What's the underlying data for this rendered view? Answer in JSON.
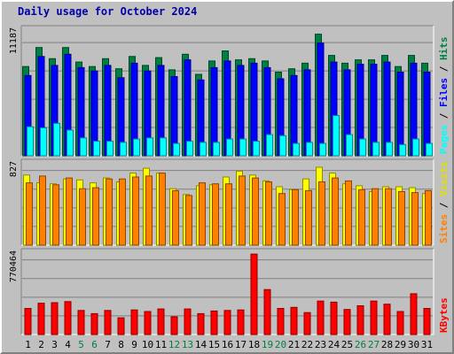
{
  "title": "Daily usage for October 2024",
  "chart_data": [
    {
      "type": "bar",
      "name": "hits-files-pages",
      "max_label": "11187",
      "ylim": [
        0,
        11187
      ],
      "categories": [
        "1",
        "2",
        "3",
        "4",
        "5",
        "6",
        "7",
        "8",
        "9",
        "10",
        "11",
        "12",
        "13",
        "14",
        "15",
        "16",
        "17",
        "18",
        "19",
        "20",
        "21",
        "22",
        "23",
        "24",
        "25",
        "26",
        "27",
        "28",
        "29",
        "30",
        "31"
      ],
      "weekend_days": [
        "5",
        "6",
        "12",
        "13",
        "19",
        "20",
        "26",
        "27"
      ],
      "legend": [
        {
          "label": "Pages",
          "color": "#00ffff"
        },
        {
          "label": "Files",
          "color": "#0000ff"
        },
        {
          "label": "Hits",
          "color": "#008040"
        }
      ],
      "series": [
        {
          "name": "Hits",
          "color": "#008040",
          "values": [
            8000,
            9700,
            8700,
            9700,
            8400,
            8000,
            8700,
            7800,
            8900,
            8100,
            8800,
            7700,
            9100,
            7300,
            8500,
            9400,
            8600,
            8700,
            8500,
            7500,
            7800,
            8300,
            10900,
            9000,
            8300,
            8600,
            8600,
            9000,
            8000,
            9000,
            8300
          ]
        },
        {
          "name": "Files",
          "color": "#0000ff",
          "values": [
            7200,
            8900,
            8100,
            9100,
            7900,
            7600,
            8100,
            7000,
            8300,
            7600,
            8100,
            7100,
            8600,
            6800,
            7900,
            8500,
            8100,
            8300,
            7900,
            6900,
            7200,
            7700,
            10100,
            8400,
            7700,
            8200,
            8200,
            8400,
            7500,
            8300,
            7500
          ]
        },
        {
          "name": "Pages",
          "color": "#00ffff",
          "values": [
            2600,
            2500,
            2900,
            2300,
            1600,
            1300,
            1300,
            1200,
            1500,
            1600,
            1600,
            1100,
            1300,
            1200,
            1200,
            1500,
            1500,
            1300,
            1900,
            1800,
            1100,
            1200,
            1100,
            3600,
            1900,
            1500,
            1200,
            1200,
            1000,
            1500,
            1100
          ]
        }
      ]
    },
    {
      "type": "bar",
      "name": "visits-sites",
      "max_label": "827",
      "ylim": [
        0,
        827
      ],
      "categories": [
        "1",
        "2",
        "3",
        "4",
        "5",
        "6",
        "7",
        "8",
        "9",
        "10",
        "11",
        "12",
        "13",
        "14",
        "15",
        "16",
        "17",
        "18",
        "19",
        "20",
        "21",
        "22",
        "23",
        "24",
        "25",
        "26",
        "27",
        "28",
        "29",
        "30",
        "31"
      ],
      "legend": [
        {
          "label": "Sites",
          "color": "#ff8000"
        },
        {
          "label": "Visits",
          "color": "#ffff00"
        }
      ],
      "series": [
        {
          "name": "Visits",
          "color": "#ffff00",
          "values": [
            720,
            640,
            630,
            680,
            670,
            640,
            690,
            650,
            740,
            790,
            740,
            580,
            520,
            610,
            620,
            700,
            760,
            720,
            660,
            600,
            570,
            680,
            800,
            740,
            630,
            610,
            550,
            600,
            600,
            590,
            530
          ]
        },
        {
          "name": "Sites",
          "color": "#ff8000",
          "values": [
            640,
            710,
            620,
            690,
            580,
            590,
            680,
            680,
            700,
            710,
            740,
            560,
            510,
            640,
            630,
            630,
            710,
            690,
            650,
            530,
            570,
            560,
            650,
            690,
            660,
            570,
            580,
            580,
            550,
            540,
            560
          ]
        }
      ]
    },
    {
      "type": "bar",
      "name": "kbytes",
      "max_label": "770464",
      "ylim": [
        0,
        770464
      ],
      "categories": [
        "1",
        "2",
        "3",
        "4",
        "5",
        "6",
        "7",
        "8",
        "9",
        "10",
        "11",
        "12",
        "13",
        "14",
        "15",
        "16",
        "17",
        "18",
        "19",
        "20",
        "21",
        "22",
        "23",
        "24",
        "25",
        "26",
        "27",
        "28",
        "29",
        "30",
        "31"
      ],
      "legend": [
        {
          "label": "KBytes",
          "color": "#ff0000"
        }
      ],
      "series": [
        {
          "name": "KBytes",
          "color": "#ff0000",
          "values": [
            250000,
            300000,
            305000,
            315000,
            230000,
            200000,
            230000,
            160000,
            235000,
            220000,
            245000,
            170000,
            245000,
            200000,
            225000,
            230000,
            235000,
            770000,
            430000,
            250000,
            260000,
            210000,
            320000,
            310000,
            240000,
            275000,
            320000,
            290000,
            220000,
            390000,
            250000
          ]
        }
      ]
    }
  ]
}
